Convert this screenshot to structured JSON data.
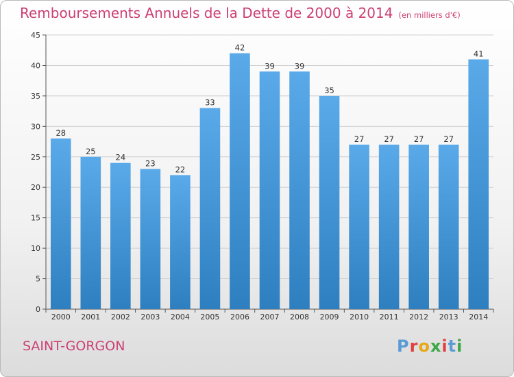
{
  "title": "Remboursements Annuels de la Dette de 2000 à 2014",
  "unit": "(en milliers d'€)",
  "commune": "SAINT-GORGON",
  "logo": {
    "text": "Proxiti",
    "colors": [
      "#5b9bd5",
      "#e04040",
      "#e6a817",
      "#3aa846",
      "#e04040",
      "#5b9bd5",
      "#3aa846"
    ]
  },
  "colors": {
    "bar_top": "#5aaaea",
    "bar_bottom": "#2e7fbf",
    "title": "#cc3f73",
    "grid": "#d0d0d0"
  },
  "chart_data": {
    "type": "bar",
    "categories": [
      "2000",
      "2001",
      "2002",
      "2003",
      "2004",
      "2005",
      "2006",
      "2007",
      "2008",
      "2009",
      "2010",
      "2011",
      "2012",
      "2013",
      "2014"
    ],
    "values": [
      28,
      25,
      24,
      23,
      22,
      33,
      42,
      39,
      39,
      35,
      27,
      27,
      27,
      27,
      41
    ],
    "title": "Remboursements Annuels de la Dette de 2000 à 2014",
    "xlabel": "",
    "ylabel": "",
    "ylim": [
      0,
      45
    ],
    "yticks": [
      0,
      5,
      10,
      15,
      20,
      25,
      30,
      35,
      40,
      45
    ],
    "grid": true,
    "legend": "none"
  }
}
